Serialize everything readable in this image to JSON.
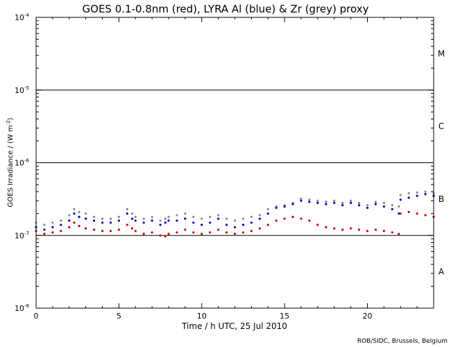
{
  "chart_data": {
    "type": "scatter",
    "title": "GOES 0.1-0.8nm (red), LYRA Al (blue) & Zr (grey) proxy",
    "xlabel": "Time / h UTC, 25 Jul 2010",
    "ylabel_prefix": "GOES Irradiance / (W m",
    "ylabel_sup": "-2",
    "ylabel_suffix": ")",
    "credit": "ROB/SIDC, Brussels, Belgium",
    "xlim": [
      0,
      24
    ],
    "ylim": [
      1e-08,
      0.0001
    ],
    "yscale": "log",
    "x_ticks": [
      0,
      5,
      10,
      15,
      20
    ],
    "x_tick_labels": [
      "0",
      "5",
      "10",
      "15",
      "20"
    ],
    "y_ticks": [
      {
        "value": 0.0001,
        "base": "10",
        "exp": "-4"
      },
      {
        "value": 1e-05,
        "base": "10",
        "exp": "-5"
      },
      {
        "value": 1e-06,
        "base": "10",
        "exp": "-6"
      },
      {
        "value": 1e-07,
        "base": "10",
        "exp": "-7"
      },
      {
        "value": 1e-08,
        "base": "10",
        "exp": "-8"
      }
    ],
    "class_lines": [
      1e-05,
      1e-06,
      1e-07
    ],
    "class_labels": [
      {
        "label": "M",
        "value": 3.16e-05
      },
      {
        "label": "C",
        "value": 3.16e-06
      },
      {
        "label": "B",
        "value": 3.16e-07
      },
      {
        "label": "A",
        "value": 3.16e-08
      }
    ],
    "series": [
      {
        "color": "#888888",
        "x": [
          0,
          0.5,
          1,
          1.5,
          2,
          2.3,
          2.6,
          3,
          3.5,
          4,
          4.5,
          5,
          5.5,
          5.8,
          6,
          6.5,
          7,
          7.5,
          7.8,
          8,
          8.5,
          9,
          9.5,
          10,
          10.5,
          11,
          11.5,
          12,
          12.5,
          13,
          13.5,
          14,
          14.5,
          15,
          15.5,
          16,
          16.5,
          17,
          17.5,
          18,
          18.5,
          19,
          19.5,
          20,
          20.5,
          21,
          21.5,
          21.9,
          22,
          22.5,
          23,
          23.5,
          24
        ],
        "y": [
          1.5e-07,
          1.4e-07,
          1.5e-07,
          1.6e-07,
          1.9e-07,
          2.3e-07,
          2.1e-07,
          2e-07,
          1.8e-07,
          1.7e-07,
          1.7e-07,
          1.8e-07,
          2.3e-07,
          2e-07,
          1.8e-07,
          1.7e-07,
          1.8e-07,
          1.6e-07,
          1.7e-07,
          1.8e-07,
          1.9e-07,
          2e-07,
          1.8e-07,
          1.7e-07,
          1.8e-07,
          1.9e-07,
          1.7e-07,
          1.6e-07,
          1.7e-07,
          1.8e-07,
          1.9e-07,
          2.3e-07,
          2.5e-07,
          2.6e-07,
          2.8e-07,
          3.2e-07,
          3.1e-07,
          3e-07,
          2.9e-07,
          3e-07,
          2.8e-07,
          3e-07,
          2.8e-07,
          2.6e-07,
          2.9e-07,
          2.8e-07,
          2.6e-07,
          2.5e-07,
          3.6e-07,
          3.8e-07,
          3.9e-07,
          4e-07,
          3.8e-07
        ]
      },
      {
        "color": "#0000cc",
        "x": [
          0,
          0.5,
          1,
          1.5,
          2,
          2.3,
          2.6,
          3,
          3.5,
          4,
          4.5,
          5,
          5.5,
          5.8,
          6,
          6.5,
          7,
          7.5,
          7.8,
          8,
          8.5,
          9,
          9.5,
          10,
          10.5,
          11,
          11.5,
          12,
          12.5,
          13,
          13.5,
          14,
          14.5,
          15,
          15.5,
          16,
          16.5,
          17,
          17.5,
          18,
          18.5,
          19,
          19.5,
          20,
          20.5,
          21,
          21.5,
          21.9,
          22,
          22.5,
          23,
          23.5,
          24
        ],
        "y": [
          1.3e-07,
          1.2e-07,
          1.3e-07,
          1.4e-07,
          1.6e-07,
          2e-07,
          1.8e-07,
          1.7e-07,
          1.6e-07,
          1.5e-07,
          1.5e-07,
          1.6e-07,
          2e-07,
          1.7e-07,
          1.6e-07,
          1.5e-07,
          1.6e-07,
          1.4e-07,
          1.5e-07,
          1.6e-07,
          1.6e-07,
          1.7e-07,
          1.5e-07,
          1.4e-07,
          1.5e-07,
          1.7e-07,
          1.4e-07,
          1.3e-07,
          1.4e-07,
          1.5e-07,
          1.7e-07,
          2e-07,
          2.4e-07,
          2.5e-07,
          2.7e-07,
          3e-07,
          2.9e-07,
          2.8e-07,
          2.7e-07,
          2.8e-07,
          2.6e-07,
          2.8e-07,
          2.6e-07,
          2.4e-07,
          2.7e-07,
          2.5e-07,
          2.3e-07,
          2e-07,
          3.1e-07,
          3.3e-07,
          3.5e-07,
          3.7e-07,
          3.5e-07
        ]
      },
      {
        "color": "#cc0000",
        "x": [
          0,
          0.5,
          1,
          1.5,
          2,
          2.3,
          2.6,
          3,
          3.5,
          4,
          4.5,
          5,
          5.5,
          5.8,
          6,
          6.5,
          7,
          7.5,
          7.8,
          8,
          8.5,
          9,
          9.5,
          10,
          10.5,
          11,
          11.5,
          12,
          12.5,
          13,
          13.5,
          14,
          14.5,
          15,
          15.5,
          16,
          16.5,
          17,
          17.5,
          18,
          18.5,
          19,
          19.5,
          20,
          20.5,
          21,
          21.5,
          21.9,
          22,
          22.5,
          23,
          23.5,
          24
        ],
        "y": [
          1.15e-07,
          1.05e-07,
          1.1e-07,
          1.15e-07,
          1.3e-07,
          1.5e-07,
          1.35e-07,
          1.25e-07,
          1.2e-07,
          1.15e-07,
          1.15e-07,
          1.2e-07,
          1.4e-07,
          1.25e-07,
          1.15e-07,
          1.05e-07,
          1.1e-07,
          1e-07,
          9.7e-08,
          1.05e-07,
          1.1e-07,
          1.2e-07,
          1.1e-07,
          1.05e-07,
          1.1e-07,
          1.2e-07,
          1.1e-07,
          1.05e-07,
          1.1e-07,
          1.15e-07,
          1.25e-07,
          1.4e-07,
          1.6e-07,
          1.7e-07,
          1.8e-07,
          1.7e-07,
          1.6e-07,
          1.4e-07,
          1.3e-07,
          1.25e-07,
          1.2e-07,
          1.25e-07,
          1.2e-07,
          1.15e-07,
          1.2e-07,
          1.15e-07,
          1.1e-07,
          1.05e-07,
          2e-07,
          2.1e-07,
          2e-07,
          1.9e-07,
          1.8e-07
        ]
      }
    ]
  }
}
